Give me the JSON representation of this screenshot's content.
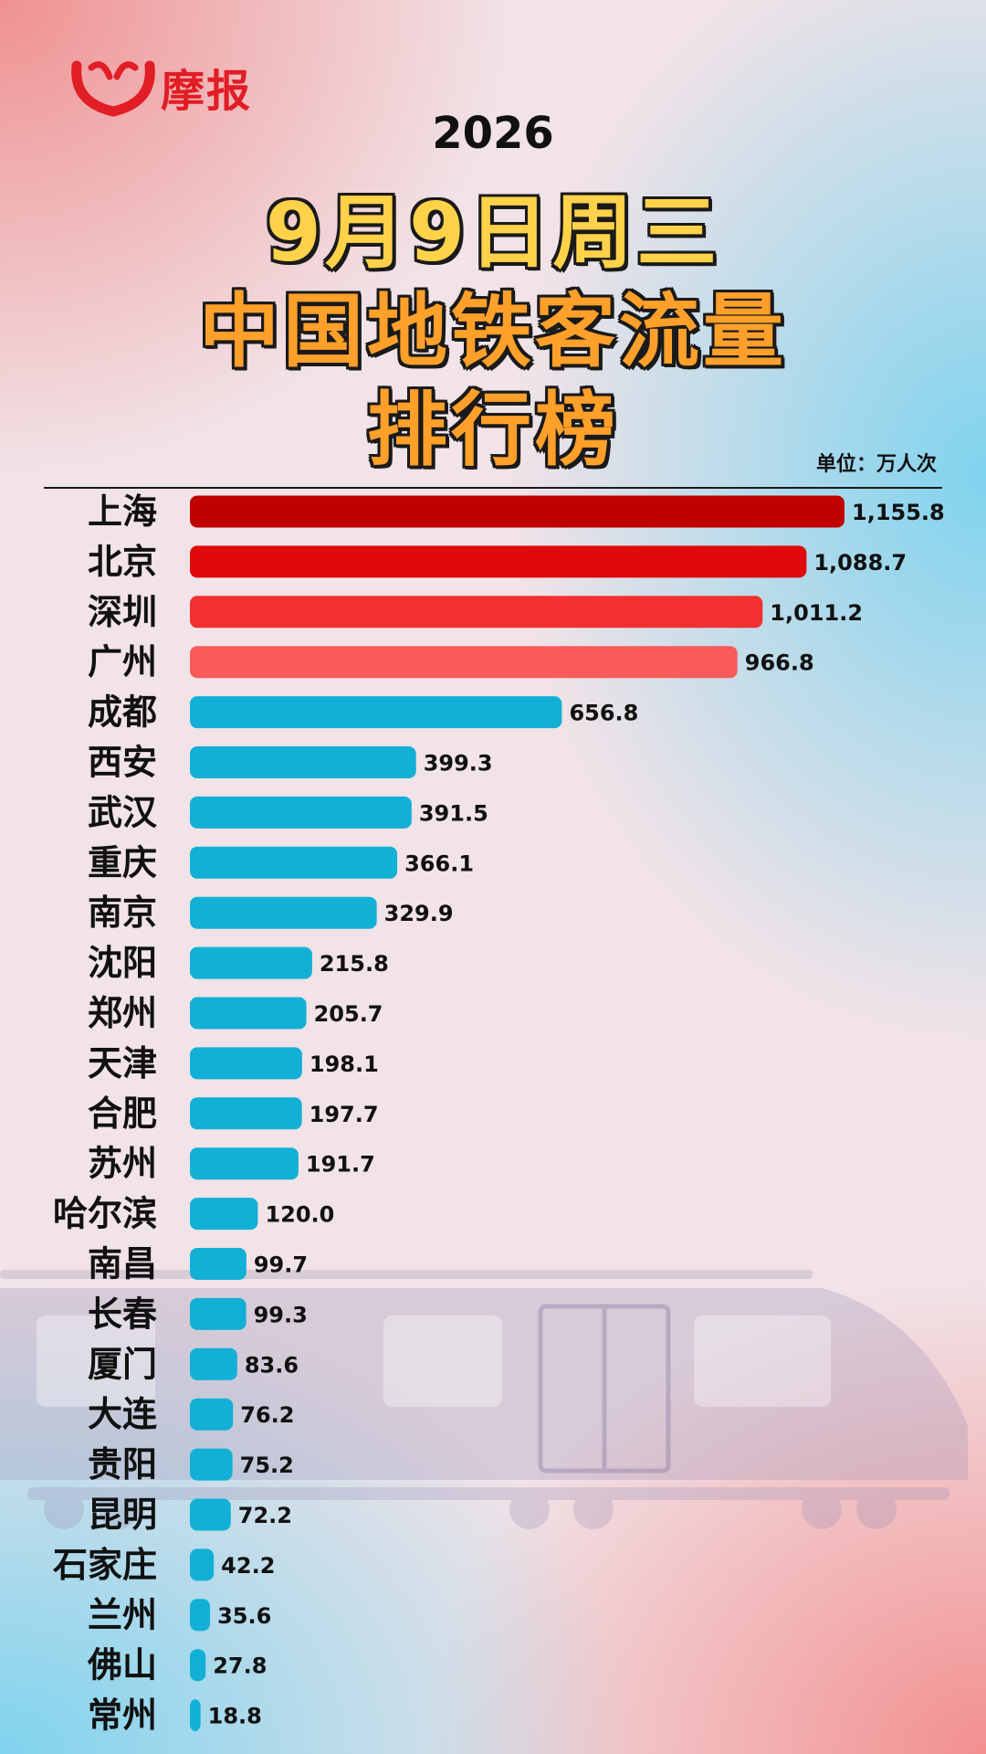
{
  "brand": {
    "name": "摩报"
  },
  "title": {
    "year": "2026",
    "date": "9月9日周三",
    "line2": "中国地铁客流量",
    "line3": "排行榜"
  },
  "unit": "单位：万人次",
  "colors": {
    "top1": "#c10000",
    "top2": "#e00a0a",
    "top3": "#f23030",
    "top4": "#f95a5a",
    "rest": "#12b0d6",
    "brand": "#e11d25",
    "title_fill": "#ffa02b"
  },
  "chart_data": {
    "type": "bar",
    "orientation": "horizontal",
    "categories": [
      "上海",
      "北京",
      "深圳",
      "广州",
      "成都",
      "西安",
      "武汉",
      "重庆",
      "南京",
      "沈阳",
      "郑州",
      "天津",
      "合肥",
      "苏州",
      "哈尔滨",
      "南昌",
      "长春",
      "厦门",
      "大连",
      "贵阳",
      "昆明",
      "石家庄",
      "兰州",
      "佛山",
      "常州"
    ],
    "values": [
      1155.8,
      1088.7,
      1011.2,
      966.8,
      656.8,
      399.3,
      391.5,
      366.1,
      329.9,
      215.8,
      205.7,
      198.1,
      197.7,
      191.7,
      120.0,
      99.7,
      99.3,
      83.6,
      76.2,
      75.2,
      72.2,
      42.2,
      35.6,
      27.8,
      18.8
    ],
    "labels": [
      "1,155.8",
      "1,088.7",
      "1,011.2",
      "966.8",
      "656.8",
      "399.3",
      "391.5",
      "366.1",
      "329.9",
      "215.8",
      "205.7",
      "198.1",
      "197.7",
      "191.7",
      "120.0",
      "99.7",
      "99.3",
      "83.6",
      "76.2",
      "75.2",
      "72.2",
      "42.2",
      "35.6",
      "27.8",
      "18.8"
    ],
    "xlim": [
      0,
      1155.8
    ],
    "grid": false,
    "legend": "none"
  }
}
